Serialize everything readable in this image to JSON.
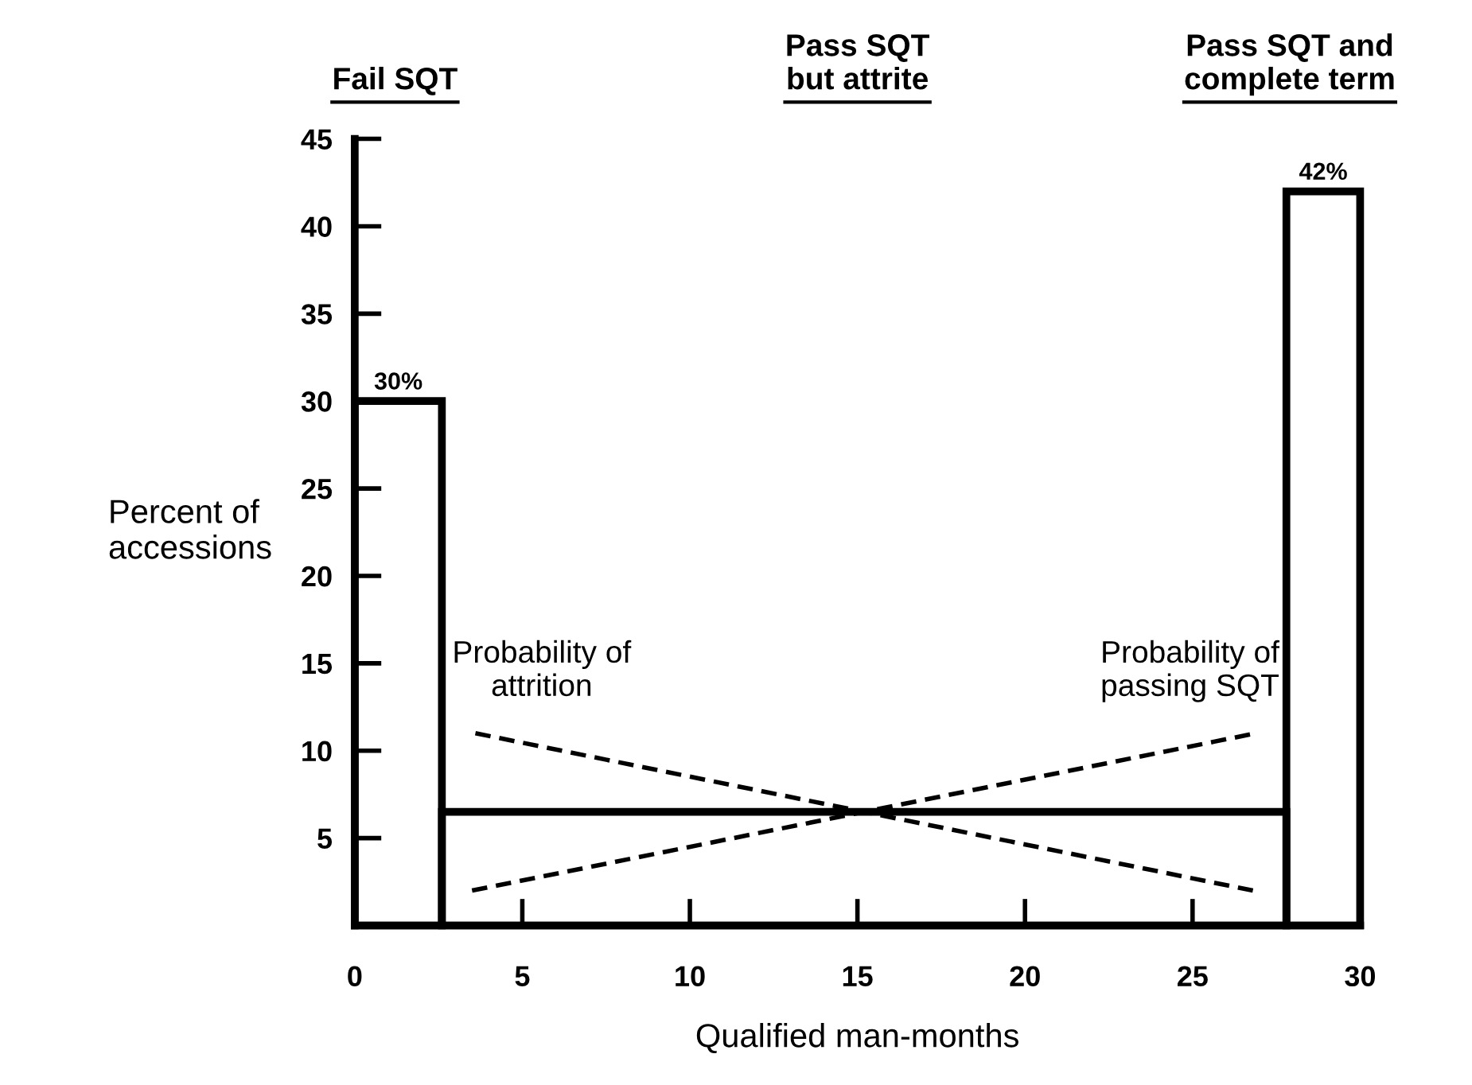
{
  "chart_data": {
    "type": "histogram",
    "xlabel": "Qualified man-months",
    "ylabel": "Percent of\naccessions",
    "bins": [
      0,
      2.6,
      27.8,
      30
    ],
    "values": [
      30,
      6.5,
      42
    ],
    "value_labels": [
      "30%",
      null,
      "42%"
    ],
    "color": "#000000",
    "series": [
      {
        "type": "line",
        "color": "#000000",
        "line_style": "dashed",
        "x": [
          3.6,
          26.8
        ],
        "values": [
          11,
          2
        ]
      },
      {
        "type": "line",
        "color": "#000000",
        "line_style": "dashed",
        "x": [
          3.5,
          26.9
        ],
        "values": [
          2,
          11
        ]
      }
    ],
    "annotations": [
      "Fail SQT",
      "Pass SQT\nbut attrite",
      "Pass SQT and\ncomplete term",
      {
        "text": "Probability of\nattrition",
        "x": 3.6,
        "y": 11
      },
      {
        "text": "Probability of\npassing SQT",
        "x": 26.9,
        "y": 11
      }
    ],
    "xlim": [
      0,
      30
    ],
    "ylim": [
      0,
      45
    ],
    "xticks": [
      0,
      5,
      10,
      15,
      20,
      25,
      30
    ],
    "yticks": [
      5,
      10,
      15,
      20,
      25,
      30,
      35,
      40,
      45
    ],
    "grid": false,
    "legend": false
  }
}
